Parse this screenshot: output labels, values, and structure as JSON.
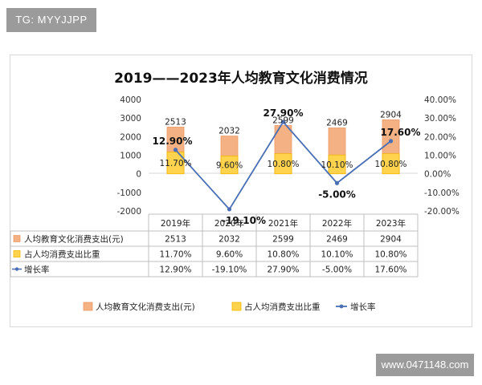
{
  "watermark_top_left": "TG: MYYJJPP",
  "watermark_bottom_right": "www.0471148.com",
  "colors": {
    "bar_spend": "#f4b183",
    "bar_spend_edge": "#ec9a6a",
    "bar_share": "#ffd34d",
    "bar_share_edge": "#f2b800",
    "line_growth": "#4a6fb5",
    "table_border": "#bfbfbf"
  },
  "chart_data": {
    "type": "bar",
    "title": "2019——2023年人均教育文化消费情况",
    "categories": [
      "2019年",
      "2020年",
      "2021年",
      "2022年",
      "2023年"
    ],
    "left_axis": {
      "min": -2000,
      "max": 4000,
      "ticks": [
        "4000",
        "3000",
        "2000",
        "1000",
        "0",
        "-1000",
        "-2000"
      ]
    },
    "right_axis": {
      "min": -20,
      "max": 40,
      "ticks": [
        "40.00%",
        "30.00%",
        "20.00%",
        "10.00%",
        "0.00%",
        "-10.00%",
        "-20.00%"
      ]
    },
    "series": [
      {
        "name": "人均教育文化消费支出(元)",
        "kind": "bar",
        "axis": "left",
        "values": [
          2513,
          2032,
          2599,
          2469,
          2904
        ],
        "labels": [
          "2513",
          "2032",
          "2599",
          "2469",
          "2904"
        ]
      },
      {
        "name": "占人均消费支出比重",
        "kind": "bar",
        "axis": "right",
        "values": [
          11.7,
          9.6,
          10.8,
          10.1,
          10.8
        ],
        "labels": [
          "11.70%",
          "9.60%",
          "10.80%",
          "10.10%",
          "10.80%"
        ]
      },
      {
        "name": "增长率",
        "kind": "line",
        "axis": "right",
        "values": [
          12.9,
          -19.1,
          27.9,
          -5.0,
          17.6
        ],
        "labels": [
          "12.90%",
          "-19.10%",
          "27.90%",
          "-5.00%",
          "17.60%"
        ]
      }
    ],
    "table": {
      "rows": [
        {
          "label": "人均教育文化消费支出(元)",
          "cells": [
            "2513",
            "2032",
            "2599",
            "2469",
            "2904"
          ]
        },
        {
          "label": "占人均消费支出比重",
          "cells": [
            "11.70%",
            "9.60%",
            "10.80%",
            "10.10%",
            "10.80%"
          ]
        },
        {
          "label": "增长率",
          "cells": [
            "12.90%",
            "-19.10%",
            "27.90%",
            "-5.00%",
            "17.60%"
          ]
        }
      ]
    },
    "legend": [
      "人均教育文化消费支出(元)",
      "占人均消费支出比重",
      "增长率"
    ],
    "legend_position": "bottom",
    "grid": false
  }
}
